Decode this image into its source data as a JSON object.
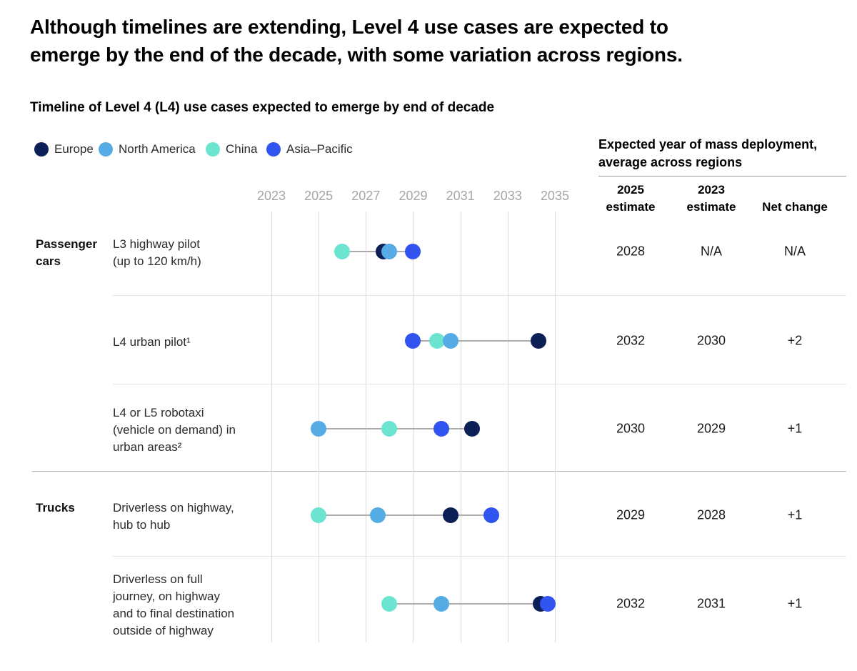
{
  "page": {
    "title_line1": "Although timelines are extending, Level 4 use cases are expected to",
    "title_line2": "emerge by the end of the decade, with some variation across regions.",
    "subtitle": "Timeline of Level 4 (L4) use cases expected to emerge by end of decade"
  },
  "legend": [
    {
      "label": "Europe",
      "color": "#0d1f57"
    },
    {
      "label": "North America",
      "color": "#55abe4"
    },
    {
      "label": "China",
      "color": "#6ce4d0"
    },
    {
      "label": "Asia–Pacific",
      "color": "#3153ef"
    }
  ],
  "right_panel": {
    "header_line1": "Expected year of mass deployment,",
    "header_line2": "average across regions",
    "columns": [
      {
        "line1": "2025",
        "line2": "estimate"
      },
      {
        "line1": "2023",
        "line2": "estimate"
      },
      {
        "line1": "Net change",
        "line2": ""
      }
    ]
  },
  "chart_data": {
    "type": "scatter",
    "title": "Timeline of Level 4 (L4) use cases expected to emerge by end of decade",
    "x_axis": {
      "ticks": [
        2023,
        2025,
        2027,
        2029,
        2031,
        2033,
        2035
      ],
      "min": 2023,
      "max": 2035,
      "grid": true
    },
    "legend_position": "top-left",
    "region_colors": {
      "Europe": "#0d1f57",
      "North America": "#55abe4",
      "China": "#6ce4d0",
      "Asia-Pacific": "#3153ef"
    },
    "rows": [
      {
        "group": "Passenger cars",
        "label_lines": [
          "L3 highway pilot",
          "(up to 120 km/h)"
        ],
        "points": [
          {
            "region": "China",
            "year": 2026
          },
          {
            "region": "Europe",
            "year": 2027.75
          },
          {
            "region": "North America",
            "year": 2028
          },
          {
            "region": "Asia-Pacific",
            "year": 2029
          }
        ],
        "estimate_2025": "2028",
        "estimate_2023": "N/A",
        "net_change": "N/A"
      },
      {
        "group": "",
        "label_lines": [
          "L4 urban pilot¹"
        ],
        "points": [
          {
            "region": "Asia-Pacific",
            "year": 2029
          },
          {
            "region": "China",
            "year": 2030
          },
          {
            "region": "North America",
            "year": 2030.6
          },
          {
            "region": "Europe",
            "year": 2034.3
          }
        ],
        "estimate_2025": "2032",
        "estimate_2023": "2030",
        "net_change": "+2"
      },
      {
        "group": "",
        "label_lines": [
          "L4 or L5 robotaxi",
          "(vehicle on demand) in",
          "urban areas²"
        ],
        "points": [
          {
            "region": "North America",
            "year": 2025
          },
          {
            "region": "China",
            "year": 2028
          },
          {
            "region": "Asia-Pacific",
            "year": 2030.2
          },
          {
            "region": "Europe",
            "year": 2031.5
          }
        ],
        "estimate_2025": "2030",
        "estimate_2023": "2029",
        "net_change": "+1"
      },
      {
        "group": "Trucks",
        "label_lines": [
          "Driverless on highway,",
          "hub to hub"
        ],
        "points": [
          {
            "region": "China",
            "year": 2025
          },
          {
            "region": "North America",
            "year": 2027.5
          },
          {
            "region": "Europe",
            "year": 2030.6
          },
          {
            "region": "Asia-Pacific",
            "year": 2032.3
          }
        ],
        "estimate_2025": "2029",
        "estimate_2023": "2028",
        "net_change": "+1"
      },
      {
        "group": "",
        "label_lines": [
          "Driverless on full",
          "journey, on highway",
          "and to final destination",
          "outside of highway"
        ],
        "points": [
          {
            "region": "China",
            "year": 2028
          },
          {
            "region": "North America",
            "year": 2030.2
          },
          {
            "region": "Europe",
            "year": 2034.4
          },
          {
            "region": "Asia-Pacific",
            "year": 2034.7
          }
        ],
        "estimate_2025": "2032",
        "estimate_2023": "2031",
        "net_change": "+1"
      }
    ]
  }
}
